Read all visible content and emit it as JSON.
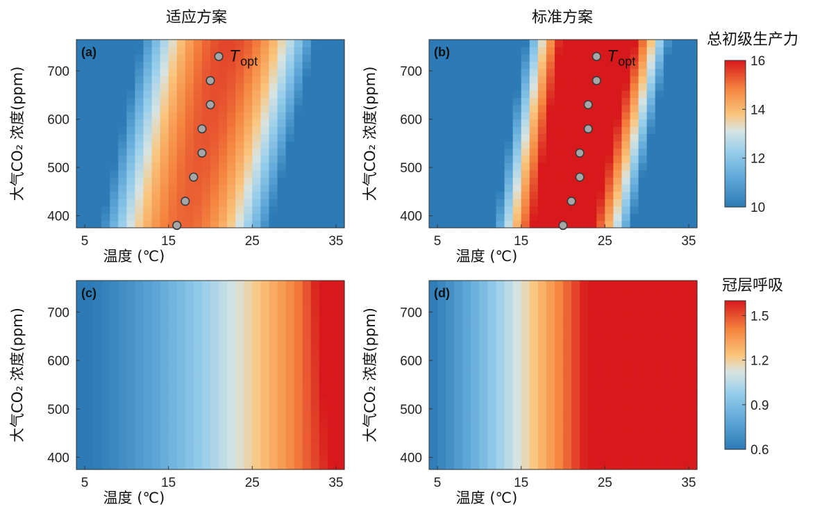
{
  "colors": {
    "low": "#2c7bb6",
    "mid_low": "#abd9e9",
    "mid": "#fdc07f",
    "high": "#d7191c"
  },
  "chart_data": [
    {
      "type": "heatmap",
      "panel_label": "(a)",
      "column_title": "适应方案",
      "xlabel": "温度 (℃)",
      "ylabel": "大气CO₂ 浓度(ppm)",
      "xlim": [
        4,
        36
      ],
      "ylim": [
        375,
        765
      ],
      "xticks": [
        5,
        15,
        25,
        35
      ],
      "yticks": [
        400,
        500,
        600,
        700
      ],
      "variable": "gpp",
      "scenario": "adaptive",
      "colorbar_title": "总初级生产力",
      "clim": [
        10,
        16
      ],
      "topt_label": "T",
      "topt_sub": "opt",
      "topt_points": [
        {
          "x": 16,
          "y": 380
        },
        {
          "x": 17,
          "y": 430
        },
        {
          "x": 18,
          "y": 480
        },
        {
          "x": 19,
          "y": 530
        },
        {
          "x": 19,
          "y": 580
        },
        {
          "x": 20,
          "y": 630
        },
        {
          "x": 20,
          "y": 680
        },
        {
          "x": 21,
          "y": 730
        }
      ]
    },
    {
      "type": "heatmap",
      "panel_label": "(b)",
      "column_title": "标准方案",
      "xlabel": "温度 (℃)",
      "ylabel": "大气CO₂ 浓度(ppm)",
      "xlim": [
        4,
        36
      ],
      "ylim": [
        375,
        765
      ],
      "xticks": [
        5,
        15,
        25,
        35
      ],
      "yticks": [
        400,
        500,
        600,
        700
      ],
      "variable": "gpp",
      "scenario": "standard",
      "colorbar_title": "总初级生产力",
      "clim": [
        10,
        16
      ],
      "topt_label": "T",
      "topt_sub": "opt",
      "topt_points": [
        {
          "x": 20,
          "y": 380
        },
        {
          "x": 21,
          "y": 430
        },
        {
          "x": 22,
          "y": 480
        },
        {
          "x": 22,
          "y": 530
        },
        {
          "x": 23,
          "y": 580
        },
        {
          "x": 23,
          "y": 630
        },
        {
          "x": 24,
          "y": 680
        },
        {
          "x": 24,
          "y": 730
        }
      ]
    },
    {
      "type": "heatmap",
      "panel_label": "(c)",
      "xlabel": "温度 (℃)",
      "ylabel": "大气CO₂ 浓度(ppm)",
      "xlim": [
        4,
        36
      ],
      "ylim": [
        375,
        765
      ],
      "xticks": [
        5,
        15,
        25,
        35
      ],
      "yticks": [
        400,
        500,
        600,
        700
      ],
      "variable": "respiration",
      "scenario": "adaptive",
      "colorbar_title": "冠层呼吸",
      "clim": [
        0.6,
        1.6
      ]
    },
    {
      "type": "heatmap",
      "panel_label": "(d)",
      "xlabel": "温度 (℃)",
      "ylabel": "大气CO₂ 浓度(ppm)",
      "xlim": [
        4,
        36
      ],
      "ylim": [
        375,
        765
      ],
      "xticks": [
        5,
        15,
        25,
        35
      ],
      "yticks": [
        400,
        500,
        600,
        700
      ],
      "variable": "respiration",
      "scenario": "standard",
      "colorbar_title": "冠层呼吸",
      "clim": [
        0.6,
        1.6
      ]
    }
  ],
  "colorbars": [
    {
      "title": "总初级生产力",
      "ticks": [
        "16",
        "14",
        "12",
        "10"
      ],
      "values": [
        16,
        14,
        12,
        10
      ],
      "min": 10,
      "max": 16
    },
    {
      "title": "冠层呼吸",
      "ticks": [
        "1.5",
        "1.2",
        "0.9",
        "0.6"
      ],
      "values": [
        1.5,
        1.2,
        0.9,
        0.6
      ],
      "min": 0.6,
      "max": 1.6
    }
  ]
}
